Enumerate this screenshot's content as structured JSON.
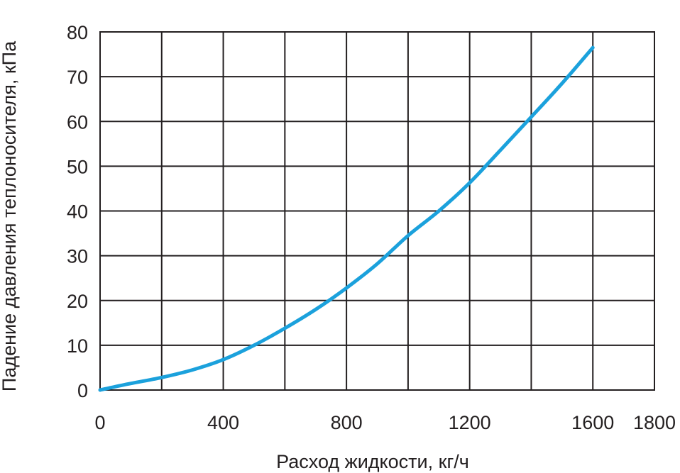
{
  "chart_data": {
    "type": "line",
    "xlabel": "Расход жидкости, кг/ч",
    "ylabel": "Падение давления теплоносителя, кПа",
    "xlim": [
      0,
      1800
    ],
    "ylim": [
      0,
      80
    ],
    "xticks": [
      0,
      200,
      400,
      600,
      800,
      1000,
      1200,
      1400,
      1600,
      1800
    ],
    "xtick_labels": [
      "0",
      "",
      "400",
      "",
      "800",
      "",
      "1200",
      "",
      "1600",
      "1800"
    ],
    "yticks": [
      0,
      10,
      20,
      30,
      40,
      50,
      60,
      70,
      80
    ],
    "ytick_labels": [
      "0",
      "10",
      "20",
      "30",
      "40",
      "50",
      "60",
      "70",
      "80"
    ],
    "grid": true,
    "series": [
      {
        "color": "#1ba1dc",
        "x": [
          0,
          80,
          200,
          300,
          400,
          500,
          600,
          700,
          800,
          900,
          1000,
          1100,
          1200,
          1300,
          1400,
          1500,
          1600
        ],
        "y": [
          0,
          1.2,
          2.8,
          4.5,
          6.8,
          10,
          13.8,
          18,
          22.8,
          28.2,
          34.5,
          40,
          46.3,
          53.6,
          61,
          68.5,
          76.5
        ]
      }
    ]
  }
}
